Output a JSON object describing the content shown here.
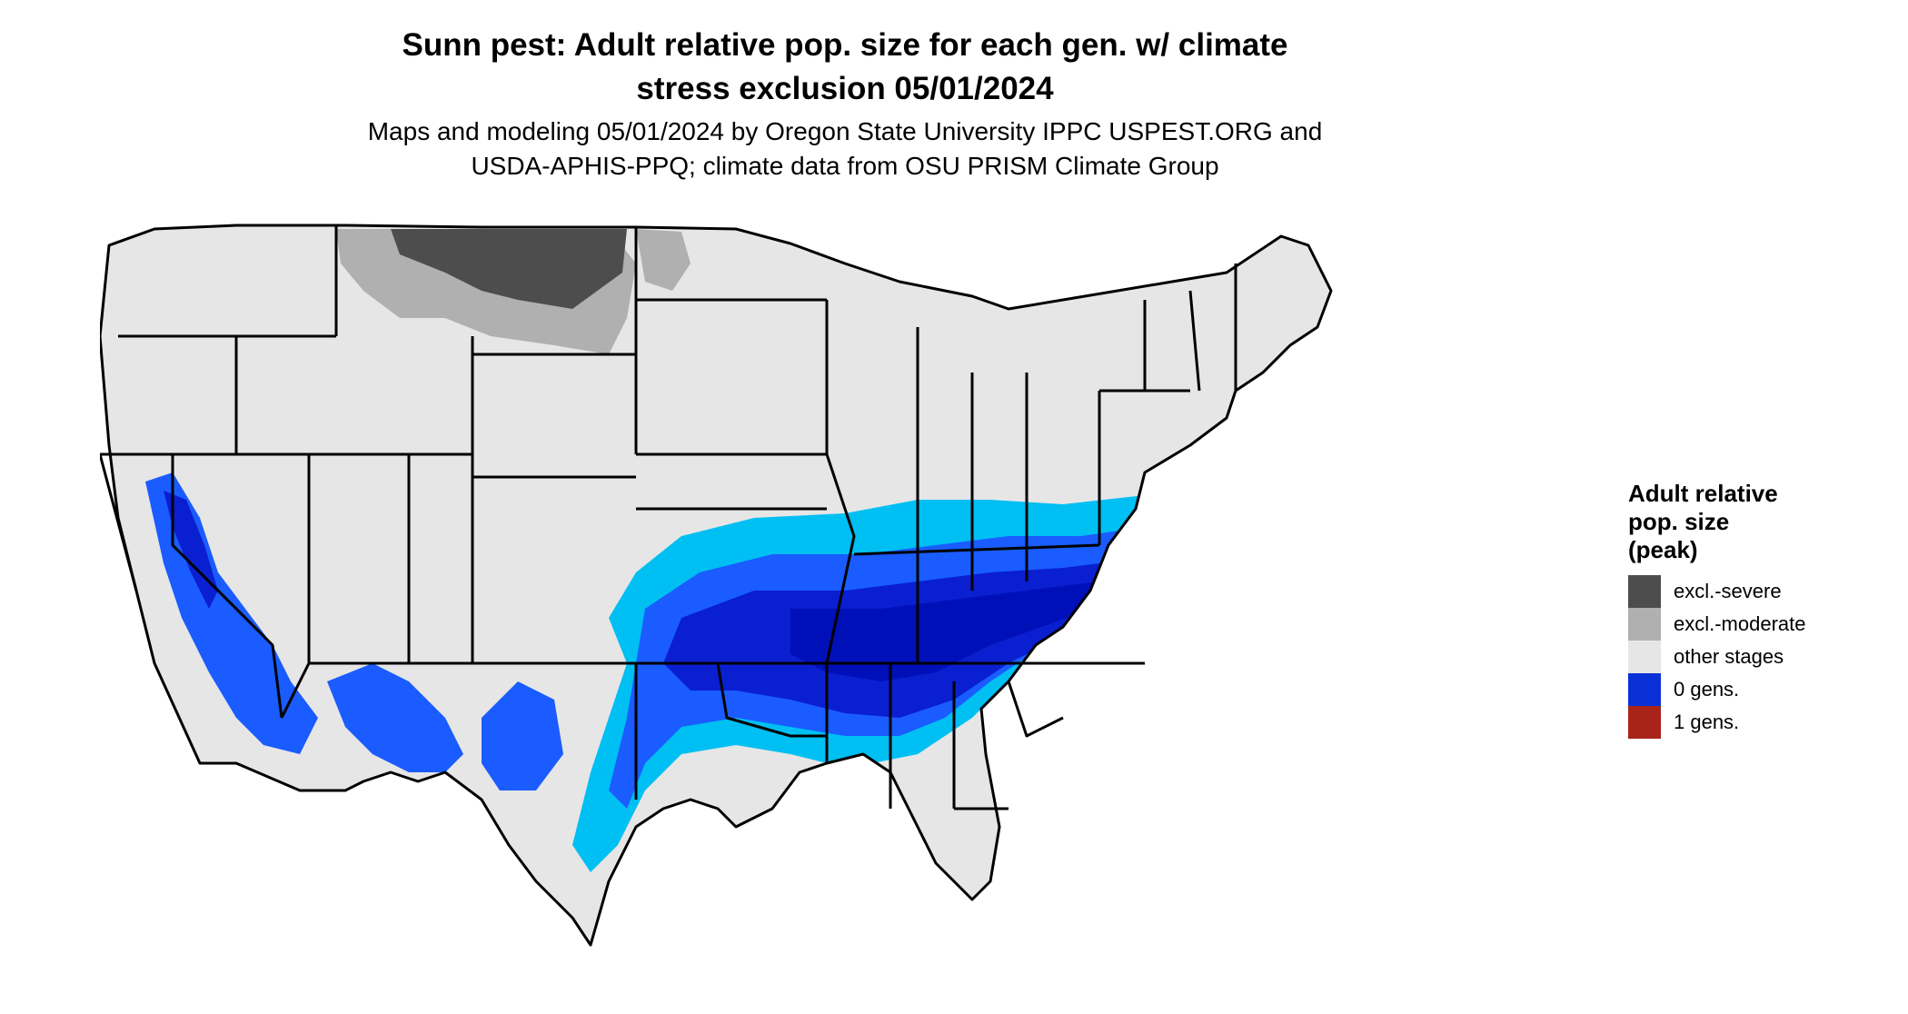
{
  "title": {
    "line1": "Sunn pest: Adult relative pop. size for each gen. w/ climate",
    "line2": "stress exclusion 05/01/2024"
  },
  "subtitle": {
    "line1": "Maps and modeling 05/01/2024 by Oregon State University IPPC USPEST.ORG and",
    "line2": "USDA-APHIS-PPQ; climate data from OSU PRISM Climate Group"
  },
  "legend": {
    "title_lines": [
      "Adult relative",
      "pop. size",
      "(peak)"
    ],
    "items": [
      {
        "label": "excl.-severe",
        "color": "#4d4d4d"
      },
      {
        "label": "excl.-moderate",
        "color": "#b0b0b0"
      },
      {
        "label": "other stages",
        "color": "#e6e6e6"
      },
      {
        "label": "0 gens.",
        "color": "#0a30d8"
      },
      {
        "label": "1 gens.",
        "color": "#a8241a"
      }
    ]
  },
  "map_colors": {
    "land": "#e6e6e6",
    "border": "#000000",
    "excl_severe": "#4d4d4d",
    "excl_moderate": "#b0b0b0",
    "zero_gens_light": "#00bff3",
    "zero_gens_mid": "#1a5cff",
    "zero_gens_dark": "#0a1fd0",
    "zero_gens_darkest": "#0010b8"
  }
}
